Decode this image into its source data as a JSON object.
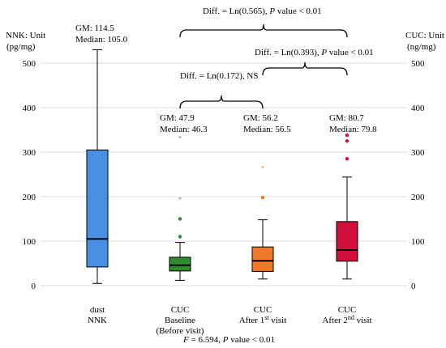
{
  "chart_data": {
    "type": "box",
    "ylabel_left": [
      "NNK: Unit",
      "(pg/mg)"
    ],
    "ylabel_right": [
      "CUC: Unit",
      "(ng/mg)"
    ],
    "ylim": [
      -10,
      545
    ],
    "yticks": [
      0,
      100,
      200,
      300,
      400,
      500
    ],
    "grid": true,
    "footer": {
      "F": "F",
      "rest": " = 6.594, ",
      "P": "P",
      "value": " value < 0.01"
    },
    "groups": [
      {
        "label_lines": [
          "dust",
          "NNK"
        ],
        "color": "#4a90e2",
        "min": 5,
        "q1": 42,
        "median": 105,
        "q3": 305,
        "max": 530,
        "outliers": [],
        "gm_label": "GM: 114.5",
        "median_label": "Median: 105.0"
      },
      {
        "label_lines": [
          "CUC",
          "Baseline",
          "(Before visit)"
        ],
        "color": "#2e8b2e",
        "min": 12,
        "q1": 33,
        "median": 46,
        "q3": 64,
        "max": 97,
        "outliers": [
          {
            "value": 110,
            "color": "#2e8b2e"
          },
          {
            "value": 150,
            "color": "#2e8b2e"
          },
          {
            "value": 195,
            "color": "#2e8b2e",
            "star": true
          },
          {
            "value": 332,
            "color": "#2e8b2e",
            "star": true
          }
        ],
        "gm_label": "GM: 47.9",
        "median_label": "Median: 46.3"
      },
      {
        "label_lines": [
          "CUC",
          "After 1|st| visit"
        ],
        "color": "#f07a2a",
        "min": 15,
        "q1": 32,
        "median": 56,
        "q3": 87,
        "max": 148,
        "outliers": [
          {
            "value": 198,
            "color": "#f07a2a"
          },
          {
            "value": 265,
            "color": "#f07a2a",
            "star": true
          }
        ],
        "gm_label": "GM: 56.2",
        "median_label": "Median: 56.5"
      },
      {
        "label_lines": [
          "CUC",
          "After 2|nd| visit"
        ],
        "color": "#d0103a",
        "min": 15,
        "q1": 55,
        "median": 80,
        "q3": 144,
        "max": 244,
        "outliers": [
          {
            "value": 285,
            "color": "#d0103a"
          },
          {
            "value": 325,
            "color": "#d0103a"
          },
          {
            "value": 338,
            "color": "#d0103a"
          }
        ],
        "gm_label": "GM: 80.7",
        "median_label": "Median: 79.8"
      }
    ],
    "comparisons": [
      {
        "from": 1,
        "to": 3,
        "text_pre": "Diff.  = Ln(0.565), ",
        "P": "P",
        "text_post": " value  < 0.01"
      },
      {
        "from": 2,
        "to": 3,
        "text_pre": "Diff.  = Ln(0.393), ",
        "P": "P",
        "text_post": " value  < 0.01"
      },
      {
        "from": 1,
        "to": 2,
        "text_pre": "Diff.  = Ln(0.172),  NS",
        "P": "",
        "text_post": ""
      }
    ]
  }
}
